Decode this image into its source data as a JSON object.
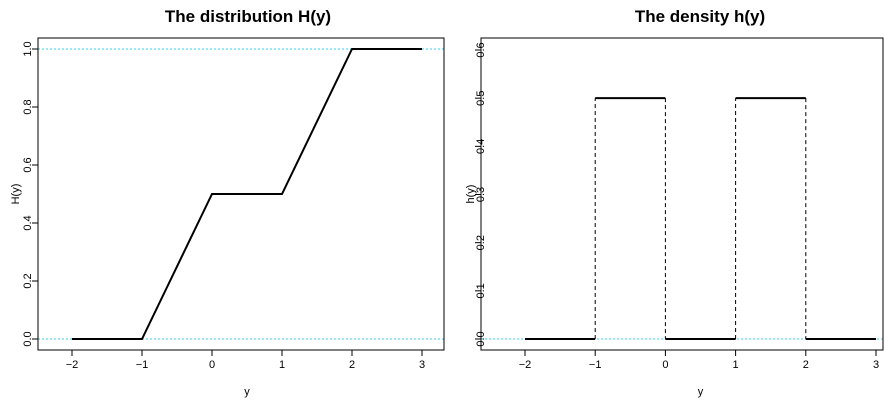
{
  "chart_data": [
    {
      "type": "line",
      "title": "The distribution H(y)",
      "xlabel": "y",
      "ylabel": "H(y)",
      "xlim": [
        -2,
        3
      ],
      "ylim": [
        0,
        1
      ],
      "xticks": [
        -2,
        -1,
        0,
        1,
        2,
        3
      ],
      "yticks": [
        0.0,
        0.2,
        0.4,
        0.6,
        0.8,
        1.0
      ],
      "xtick_labels": [
        "−2",
        "−1",
        "0",
        "1",
        "2",
        "3"
      ],
      "ytick_labels": [
        "0.0",
        "0.2",
        "0.4",
        "0.6",
        "0.8",
        "1.0"
      ],
      "reference_lines": [
        0,
        1
      ],
      "reference_color": "#33d6e8",
      "series": [
        {
          "x": [
            -2,
            -1,
            0,
            1,
            2,
            3
          ],
          "y": [
            0,
            0,
            0.5,
            0.5,
            1,
            1
          ],
          "style": "solid"
        }
      ]
    },
    {
      "type": "line",
      "title": "The density h(y)",
      "xlabel": "y",
      "ylabel": "h(y)",
      "xlim": [
        -2,
        3
      ],
      "ylim": [
        0,
        0.6
      ],
      "xticks": [
        -2,
        -1,
        0,
        1,
        2,
        3
      ],
      "yticks": [
        0.0,
        0.1,
        0.2,
        0.3,
        0.4,
        0.5,
        0.6
      ],
      "xtick_labels": [
        "−2",
        "−1",
        "0",
        "1",
        "2",
        "3"
      ],
      "ytick_labels": [
        "0.0",
        "0.1",
        "0.2",
        "0.3",
        "0.4",
        "0.5",
        "0.6"
      ],
      "reference_lines": [
        0
      ],
      "reference_color": "#33d6e8",
      "segments": [
        {
          "x0": -2,
          "x1": -1,
          "y": 0
        },
        {
          "x0": -1,
          "x1": 0,
          "y": 0.5
        },
        {
          "x0": 0,
          "x1": 1,
          "y": 0
        },
        {
          "x0": 1,
          "x1": 2,
          "y": 0.5
        },
        {
          "x0": 2,
          "x1": 3,
          "y": 0
        }
      ],
      "jumps": [
        {
          "x": -1,
          "y0": 0,
          "y1": 0.5
        },
        {
          "x": 0,
          "y0": 0.5,
          "y1": 0
        },
        {
          "x": 1,
          "y0": 0,
          "y1": 0.5
        },
        {
          "x": 2,
          "y0": 0.5,
          "y1": 0
        }
      ]
    }
  ]
}
